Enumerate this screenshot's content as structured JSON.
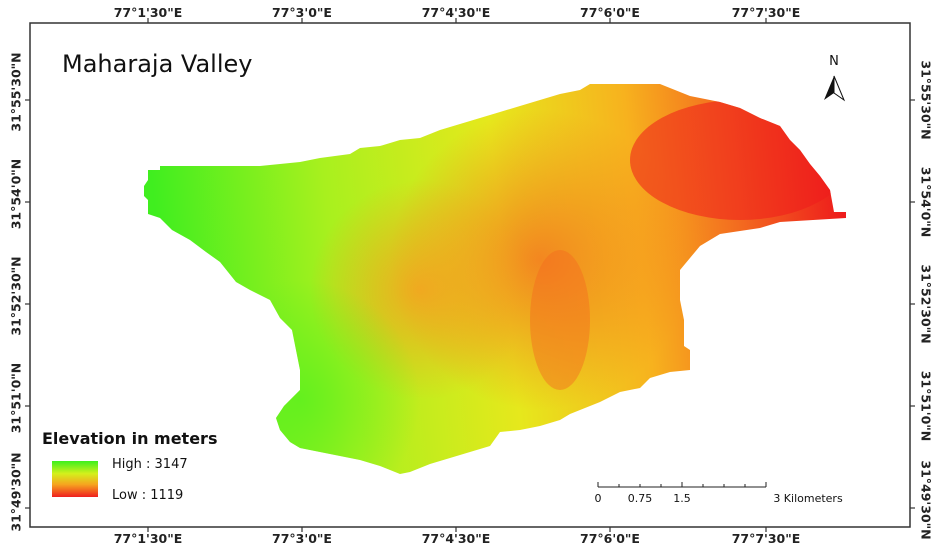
{
  "map": {
    "title": "Maharaja Valley",
    "north_label": "N",
    "colors": {
      "high": "#3cf01e",
      "mid": "#d4f01c",
      "mid2": "#f6a51f",
      "low": "#ef1f1f"
    }
  },
  "graticule": {
    "longitudes": [
      "77°1'30\"E",
      "77°3'0\"E",
      "77°4'30\"E",
      "77°6'0\"E",
      "77°7'30\"E"
    ],
    "latitudes": [
      "31°55'30\"N",
      "31°54'0\"N",
      "31°52'30\"N",
      "31°51'0\"N",
      "31°49'30\"N"
    ]
  },
  "legend": {
    "title": "Elevation in meters",
    "high_label": "High : 3147",
    "low_label": "Low : 1119"
  },
  "scalebar": {
    "labels": [
      "0",
      "0.75",
      "1.5",
      "3 Kilometers"
    ]
  }
}
